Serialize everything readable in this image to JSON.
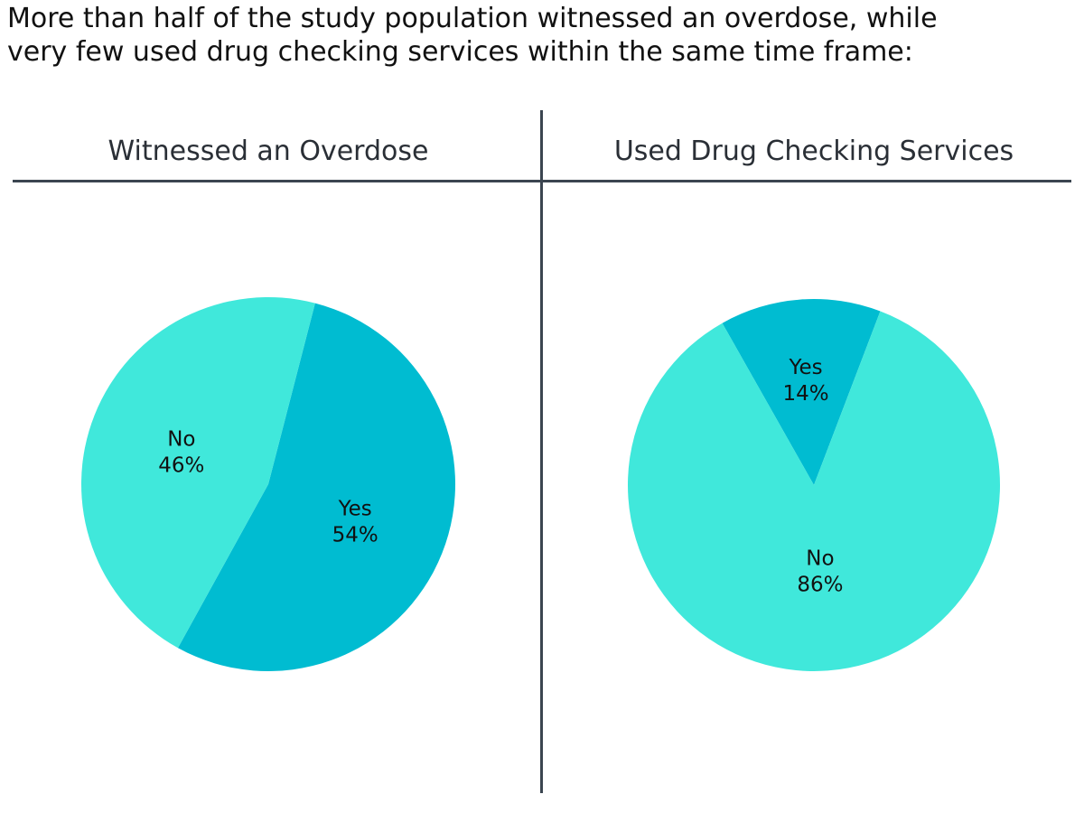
{
  "headline": {
    "line1": "More than half of the study population witnessed an overdose, while",
    "line2": "very few used drug checking services within the same time frame:"
  },
  "colors": {
    "yes": "#00BCD1",
    "no": "#40E8DB",
    "divider": "#3B4550"
  },
  "chart_data": [
    {
      "type": "pie",
      "title": "Witnessed an Overdose",
      "slices": [
        {
          "label": "Yes",
          "value": 54,
          "value_label": "54%",
          "color": "#00BCD1"
        },
        {
          "label": "No",
          "value": 46,
          "value_label": "46%",
          "color": "#40E8DB"
        }
      ]
    },
    {
      "type": "pie",
      "title": "Used Drug Checking Services",
      "slices": [
        {
          "label": "Yes",
          "value": 14,
          "value_label": "14%",
          "color": "#00BCD1"
        },
        {
          "label": "No",
          "value": 86,
          "value_label": "86%",
          "color": "#40E8DB"
        }
      ]
    }
  ]
}
